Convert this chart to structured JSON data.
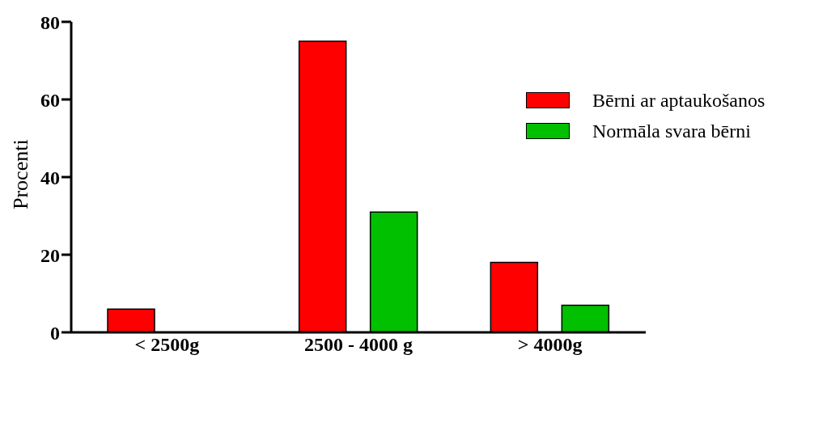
{
  "chart_data": {
    "type": "bar",
    "ylabel": "Procenti",
    "categories": [
      "< 2500g",
      "2500 - 4000 g",
      "> 4000g"
    ],
    "series": [
      {
        "name": "Bērni ar aptaukošanos",
        "color": "#ff0000",
        "values": [
          6,
          75,
          18
        ]
      },
      {
        "name": "Normāla svara bērni",
        "color": "#00c000",
        "values": [
          0,
          31,
          7
        ]
      }
    ],
    "ylim": [
      0,
      80
    ],
    "yticks": [
      0,
      20,
      40,
      60,
      80
    ],
    "legend": "top right"
  }
}
